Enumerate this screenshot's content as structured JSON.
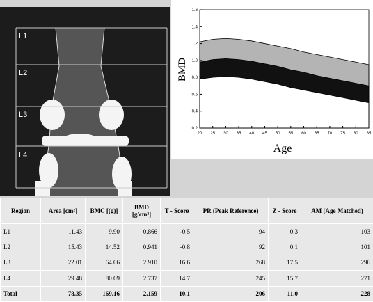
{
  "image": {
    "labels": [
      "L1",
      "L2",
      "L3",
      "L4"
    ]
  },
  "chart_data": {
    "type": "area",
    "y_label": "BMD",
    "x_label": "Age",
    "x": [
      20,
      25,
      30,
      35,
      40,
      45,
      50,
      55,
      60,
      65,
      70,
      75,
      80,
      85
    ],
    "series": [
      {
        "color": "#b4b4b4",
        "values": [
          1.22,
          1.25,
          1.26,
          1.25,
          1.23,
          1.2,
          1.17,
          1.14,
          1.1,
          1.07,
          1.04,
          1.01,
          0.98,
          0.95
        ]
      },
      {
        "color": "#111111",
        "values": [
          0.98,
          1.01,
          1.02,
          1.01,
          0.99,
          0.96,
          0.93,
          0.89,
          0.86,
          0.82,
          0.79,
          0.76,
          0.73,
          0.7
        ]
      },
      {
        "color": "#ffffff",
        "values": [
          0.78,
          0.8,
          0.81,
          0.8,
          0.78,
          0.75,
          0.72,
          0.68,
          0.65,
          0.62,
          0.59,
          0.56,
          0.53,
          0.5
        ]
      }
    ],
    "xlim": [
      20,
      85
    ],
    "xticks": [
      20,
      25,
      30,
      35,
      40,
      45,
      50,
      55,
      60,
      65,
      70,
      75,
      80,
      85
    ],
    "ylim": [
      0.2,
      1.6
    ],
    "yticks": [
      0.2,
      0.4,
      0.6,
      0.8,
      {
        "value": 1,
        "label": "1.0"
      },
      1.2,
      1.4,
      1.6
    ]
  },
  "table": {
    "header": [
      "Region",
      "Area [cm²]",
      "BMC [(g)]",
      "BMD [g/cm²]",
      "T - Score",
      "PR (Peak Reference)",
      "Z - Score",
      "AM (Age Matched)"
    ],
    "rows": [
      [
        "L1",
        "11.43",
        "9.90",
        "0.866",
        "-0.5",
        "94",
        "0.3",
        "103"
      ],
      [
        "L2",
        "15.43",
        "14.52",
        "0.941",
        "-0.8",
        "92",
        "0.1",
        "101"
      ],
      [
        "L3",
        "22.01",
        "64.06",
        "2.910",
        "16.6",
        "268",
        "17.5",
        "296"
      ],
      [
        "L4",
        "29.48",
        "80.69",
        "2.737",
        "14.7",
        "245",
        "15.7",
        "271"
      ],
      [
        "Total",
        "78.35",
        "169.16",
        "2.159",
        "10.1",
        "206",
        "11.0",
        "228"
      ]
    ]
  }
}
